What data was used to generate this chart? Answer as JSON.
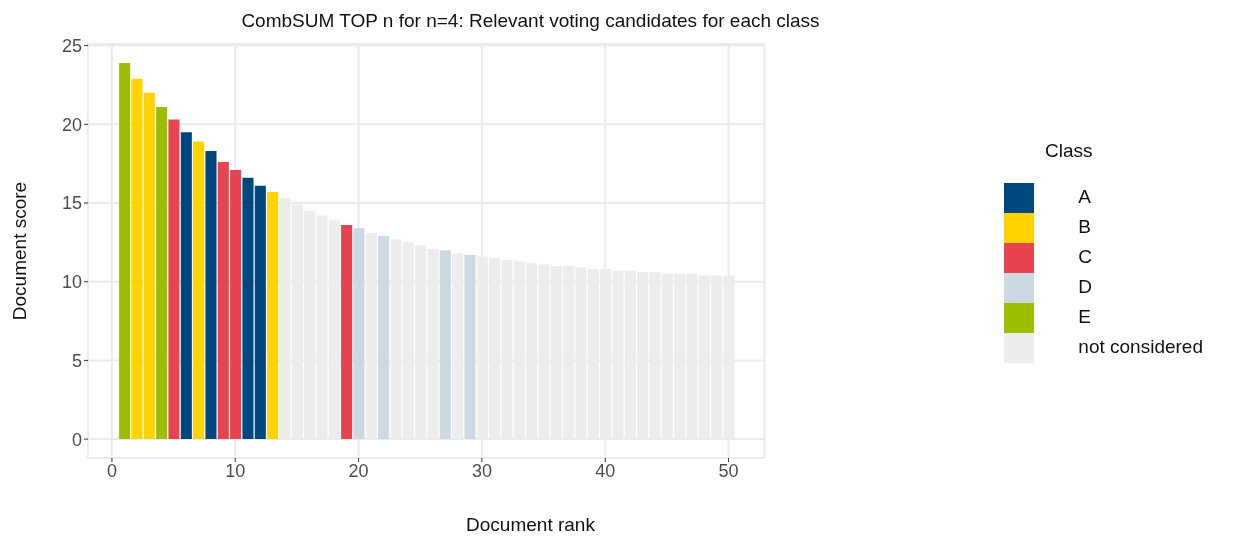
{
  "chart_data": {
    "type": "bar",
    "title": "CombSUM TOP n for n=4: Relevant voting candidates for each class",
    "xlabel": "Document rank",
    "ylabel": "Document score",
    "legend_title": "Class",
    "legend": "right",
    "grid": true,
    "stacked": true,
    "x": [
      1,
      2,
      3,
      4,
      5,
      6,
      7,
      8,
      9,
      10,
      11,
      12,
      13,
      14,
      15,
      16,
      17,
      18,
      19,
      20,
      21,
      22,
      23,
      24,
      25,
      26,
      27,
      28,
      29,
      30,
      31,
      32,
      33,
      34,
      35,
      36,
      37,
      38,
      39,
      40,
      41,
      42,
      43,
      44,
      45,
      46,
      47,
      48,
      49,
      50
    ],
    "xlim": [
      -1.94,
      52.9
    ],
    "xticks": [
      0,
      10,
      20,
      30,
      40,
      50
    ],
    "ylim": [
      -1.2,
      25.1
    ],
    "yticks": [
      0,
      5,
      10,
      15,
      20,
      25
    ],
    "series": [
      {
        "name": "A",
        "color": "#00467f",
        "values": [
          null,
          null,
          null,
          null,
          null,
          19.5,
          null,
          18.3,
          null,
          null,
          16.6,
          16.1,
          null,
          null,
          null,
          null,
          null,
          null,
          null,
          null,
          null,
          null,
          null,
          null,
          null,
          null,
          null,
          null,
          null,
          null,
          null,
          null,
          null,
          null,
          null,
          null,
          null,
          null,
          null,
          null,
          null,
          null,
          null,
          null,
          null,
          null,
          null,
          null,
          null,
          null
        ]
      },
      {
        "name": "B",
        "color": "#ffd300",
        "values": [
          null,
          22.9,
          22.0,
          null,
          null,
          null,
          18.9,
          null,
          null,
          null,
          null,
          null,
          15.7,
          null,
          null,
          null,
          null,
          null,
          null,
          null,
          null,
          null,
          null,
          null,
          null,
          null,
          null,
          null,
          null,
          null,
          null,
          null,
          null,
          null,
          null,
          null,
          null,
          null,
          null,
          null,
          null,
          null,
          null,
          null,
          null,
          null,
          null,
          null,
          null,
          null
        ]
      },
      {
        "name": "C",
        "color": "#e6444f",
        "values": [
          null,
          null,
          null,
          null,
          20.3,
          null,
          null,
          null,
          17.6,
          17.1,
          null,
          null,
          null,
          null,
          null,
          null,
          null,
          null,
          13.6,
          null,
          null,
          null,
          null,
          null,
          null,
          null,
          null,
          null,
          null,
          null,
          null,
          null,
          null,
          null,
          null,
          null,
          null,
          null,
          null,
          null,
          null,
          null,
          null,
          null,
          null,
          null,
          null,
          null,
          null,
          null
        ]
      },
      {
        "name": "D",
        "color": "#cdd9e1",
        "values": [
          null,
          null,
          null,
          null,
          null,
          null,
          null,
          null,
          null,
          null,
          null,
          null,
          null,
          null,
          null,
          null,
          null,
          null,
          null,
          13.4,
          null,
          12.9,
          null,
          null,
          null,
          null,
          12.0,
          null,
          11.7,
          null,
          null,
          null,
          null,
          null,
          null,
          null,
          null,
          null,
          null,
          null,
          null,
          null,
          null,
          null,
          null,
          null,
          null,
          null,
          null,
          null
        ]
      },
      {
        "name": "E",
        "color": "#9bbf00",
        "values": [
          23.9,
          null,
          null,
          21.1,
          null,
          null,
          null,
          null,
          null,
          null,
          null,
          null,
          null,
          null,
          null,
          null,
          null,
          null,
          null,
          null,
          null,
          null,
          null,
          null,
          null,
          null,
          null,
          null,
          null,
          null,
          null,
          null,
          null,
          null,
          null,
          null,
          null,
          null,
          null,
          null,
          null,
          null,
          null,
          null,
          null,
          null,
          null,
          null,
          null,
          null
        ]
      },
      {
        "name": "not considered",
        "color": "#ededed",
        "values": [
          null,
          null,
          null,
          null,
          null,
          null,
          null,
          null,
          null,
          null,
          null,
          null,
          null,
          15.3,
          14.9,
          14.5,
          14.2,
          13.9,
          null,
          null,
          13.1,
          null,
          12.7,
          12.5,
          12.3,
          12.1,
          null,
          11.8,
          null,
          11.6,
          11.5,
          11.4,
          11.3,
          11.2,
          11.1,
          11.0,
          11.0,
          10.9,
          10.8,
          10.8,
          10.7,
          10.7,
          10.6,
          10.6,
          10.5,
          10.5,
          10.5,
          10.4,
          10.4,
          10.4
        ]
      }
    ]
  }
}
